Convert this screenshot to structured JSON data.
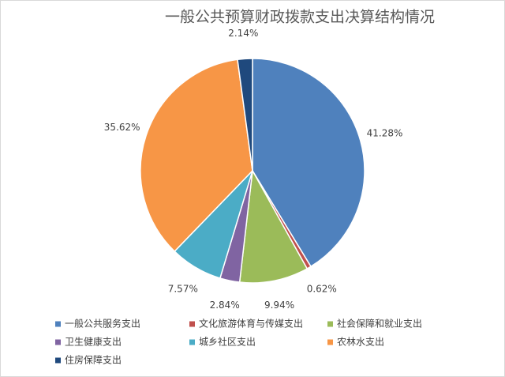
{
  "chart_data": {
    "type": "pie",
    "title": "一般公共预算财政拨款支出决算结构情况",
    "categories": [
      "一般公共服务支出",
      "文化旅游体育与传媒支出",
      "社会保障和就业支出",
      "卫生健康支出",
      "城乡社区支出",
      "农林水支出",
      "住房保障支出"
    ],
    "values": [
      41.28,
      0.62,
      9.94,
      2.84,
      7.57,
      35.62,
      2.14
    ],
    "value_labels": [
      "41.28%",
      "0.62%",
      "9.94%",
      "2.84%",
      "7.57%",
      "35.62%",
      "2.14%"
    ],
    "colors": [
      "#4f81bd",
      "#c0504d",
      "#9bbb59",
      "#8064a2",
      "#4bacc6",
      "#f79646",
      "#1f497d"
    ],
    "legend": "bottom"
  }
}
